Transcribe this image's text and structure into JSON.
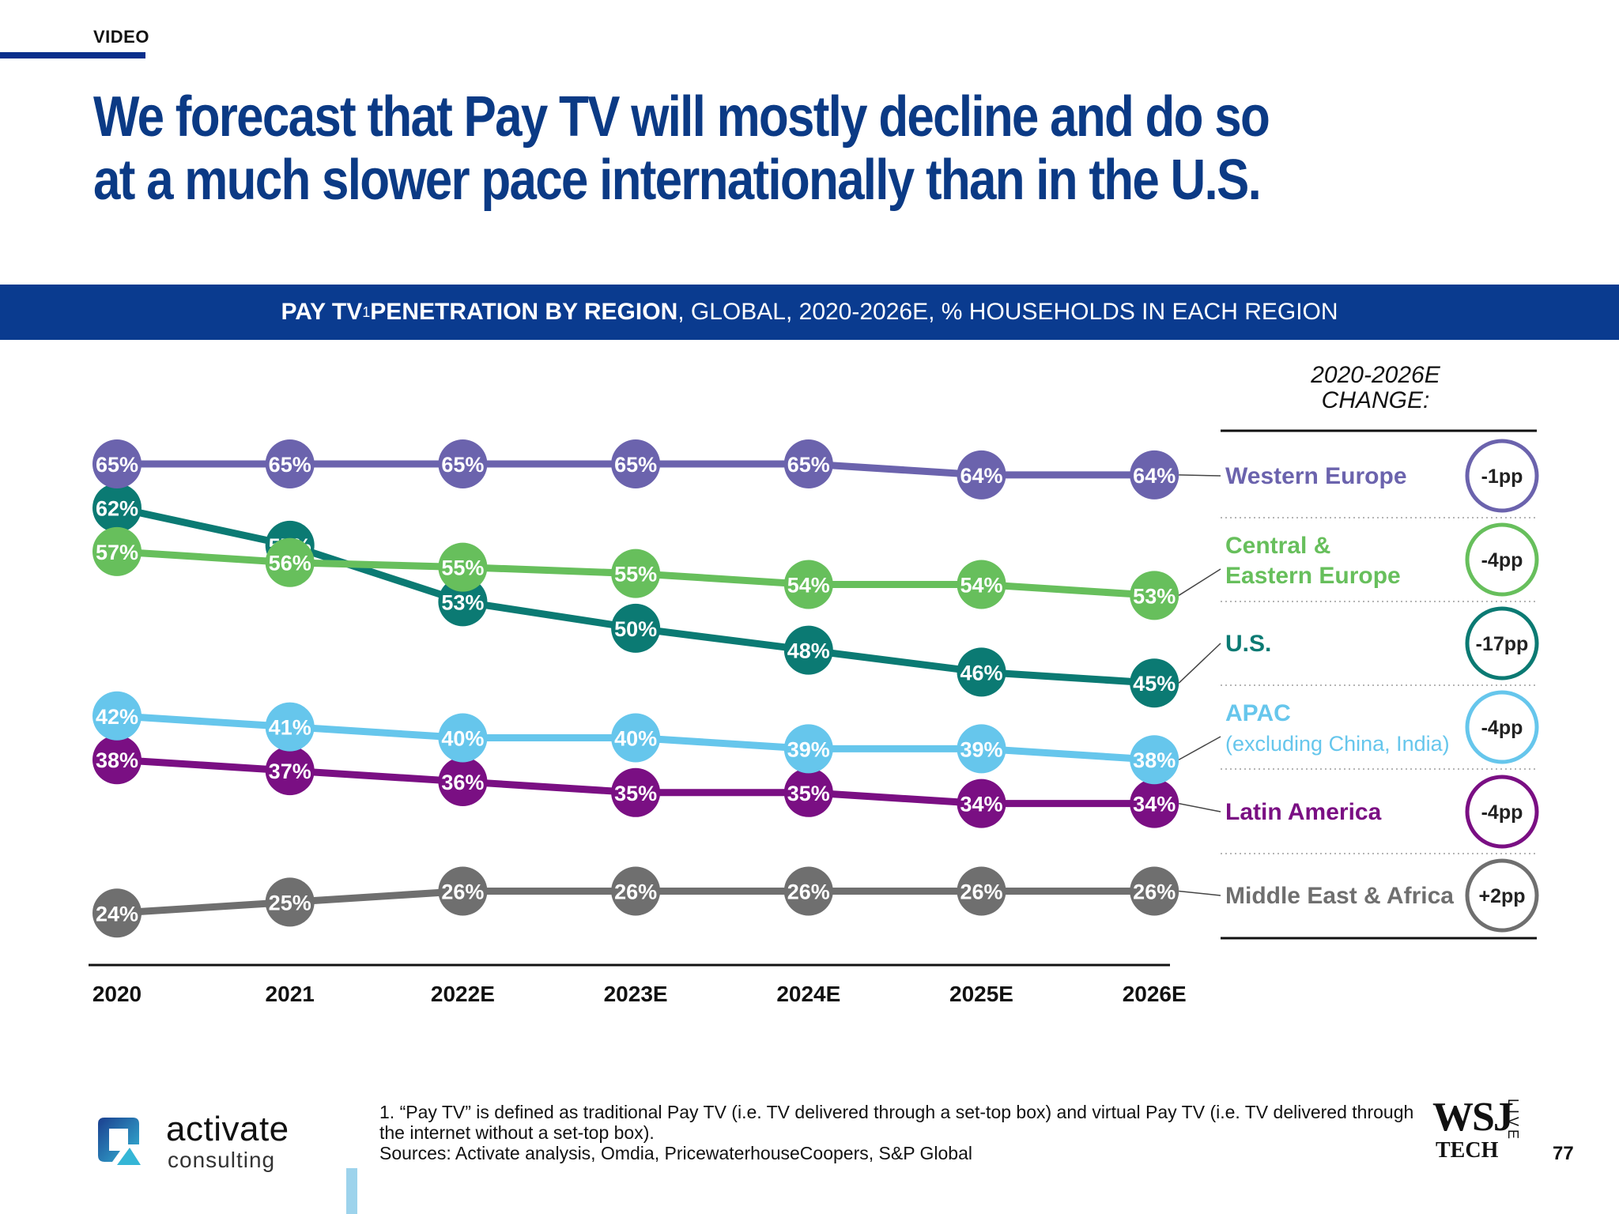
{
  "header": {
    "section": "VIDEO",
    "title": "We forecast that Pay TV will mostly decline and do so at a much slower pace internationally than in the U.S."
  },
  "banner": {
    "bold_text": "PAY TV",
    "superscript": "1",
    "bold_text_2": " PENETRATION BY REGION",
    "rest_text": ", GLOBAL, 2020-2026E, % HOUSEHOLDS IN EACH REGION"
  },
  "change_header": [
    "2020-2026E",
    "CHANGE:"
  ],
  "colors": {
    "brand_blue": "#0a3b8f",
    "title_blue": "#0b3a85"
  },
  "chart_data": {
    "type": "line",
    "x": [
      "2020",
      "2021",
      "2022E",
      "2023E",
      "2024E",
      "2025E",
      "2026E"
    ],
    "series": [
      {
        "name": "Western Europe",
        "values": [
          65,
          65,
          65,
          65,
          65,
          64,
          64
        ],
        "labels": [
          "65%",
          "65%",
          "65%",
          "65%",
          "65%",
          "64%",
          "64%"
        ],
        "color": "#6b63ad",
        "change": "-1pp"
      },
      {
        "name": "Central & Eastern Europe",
        "label_lines": [
          "Central &",
          "Eastern Europe"
        ],
        "values": [
          57,
          56,
          55,
          55,
          54,
          54,
          53
        ],
        "labels": [
          "57%",
          "56%",
          "55%",
          "55%",
          "54%",
          "54%",
          "53%"
        ],
        "color": "#67bf5c",
        "change": "-4pp"
      },
      {
        "name": "U.S.",
        "values": [
          62,
          57,
          53,
          50,
          48,
          46,
          45
        ],
        "labels": [
          "62%",
          "57%",
          "53%",
          "50%",
          "48%",
          "46%",
          "45%"
        ],
        "color": "#0b7a73",
        "change": "-17pp"
      },
      {
        "name": "APAC",
        "label_lines": [
          "APAC",
          "(excluding China, India)"
        ],
        "values": [
          42,
          41,
          40,
          40,
          39,
          39,
          38
        ],
        "labels": [
          "42%",
          "41%",
          "40%",
          "40%",
          "39%",
          "39%",
          "38%"
        ],
        "color": "#66c6ec",
        "change": "-4pp"
      },
      {
        "name": "Latin America",
        "values": [
          38,
          37,
          36,
          35,
          35,
          34,
          34
        ],
        "labels": [
          "38%",
          "37%",
          "36%",
          "35%",
          "35%",
          "34%",
          "34%"
        ],
        "color": "#7a0f83",
        "change": "-4pp"
      },
      {
        "name": "Middle East & Africa",
        "values": [
          24,
          25,
          26,
          26,
          26,
          26,
          26
        ],
        "labels": [
          "24%",
          "25%",
          "26%",
          "26%",
          "26%",
          "26%",
          "26%"
        ],
        "color": "#6f6f6f",
        "change": "+2pp"
      }
    ]
  },
  "footnote": {
    "line1": "1. “Pay TV” is defined as traditional Pay TV (i.e. TV delivered through a set-top box) and virtual Pay TV (i.e. TV delivered through",
    "line2": "the internet without a set-top box).",
    "line3": "Sources: Activate analysis, Omdia, PricewaterhouseCoopers, S&P Global"
  },
  "logo": {
    "word": "activate",
    "sub": "consulting"
  },
  "wsj": {
    "top": "WSJ",
    "bottom": "TECH",
    "live": "LIVE"
  },
  "page_number": "77"
}
